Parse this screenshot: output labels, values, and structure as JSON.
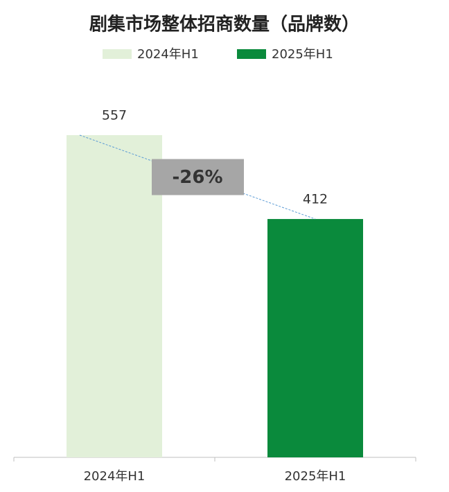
{
  "chart_data": {
    "type": "bar",
    "title": "剧集市场整体招商数量（品牌数）",
    "categories": [
      "2024年H1",
      "2025年H1"
    ],
    "series": [
      {
        "name": "2024年H1",
        "color": "#e2f0d9",
        "values": [
          557,
          null
        ]
      },
      {
        "name": "2025年H1",
        "color": "#0a8a3c",
        "values": [
          null,
          412
        ]
      }
    ],
    "annotation": "-26%"
  }
}
